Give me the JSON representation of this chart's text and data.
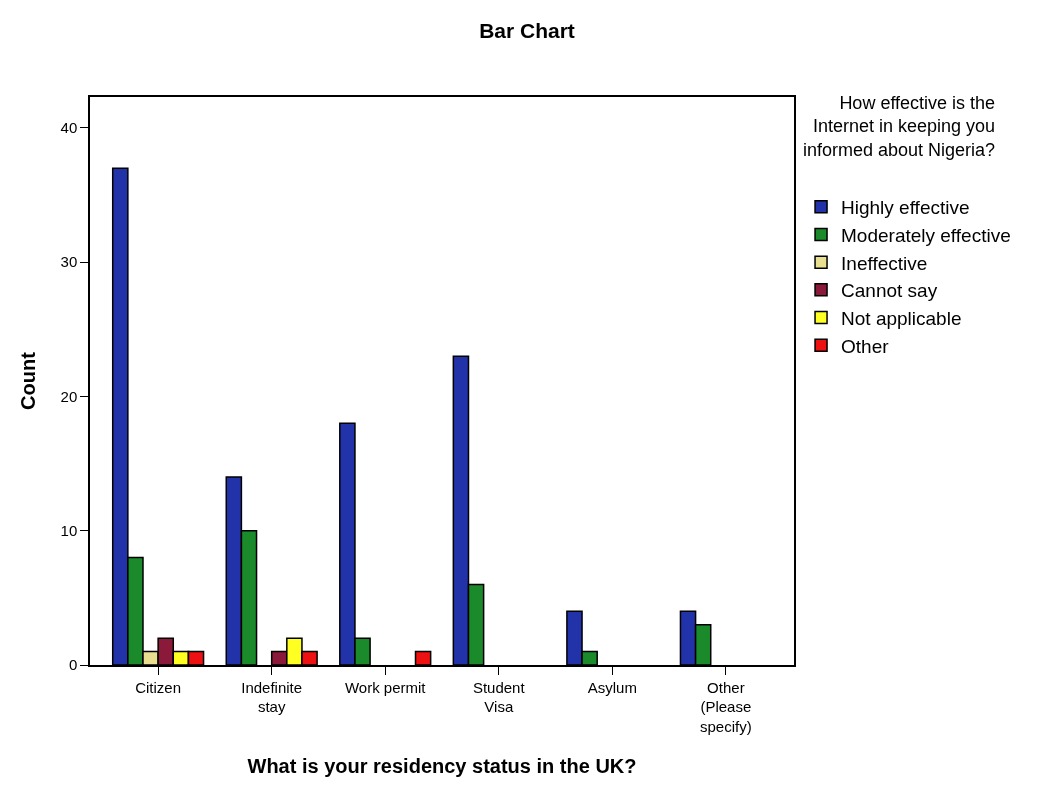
{
  "chart_data": {
    "type": "bar",
    "title": "Bar Chart",
    "xlabel": "What is your residency status in the UK?",
    "ylabel": "Count",
    "legend_title": "How effective is the Internet in keeping you informed about Nigeria?",
    "categories": [
      "Citizen",
      "Indefinite stay",
      "Work permit",
      "Student Visa",
      "Asylum",
      "Other (Please specify)"
    ],
    "series": [
      {
        "name": "Highly effective",
        "color": "#2233aa",
        "values": [
          37,
          14,
          18,
          23,
          4,
          4
        ]
      },
      {
        "name": "Moderately effective",
        "color": "#1a8a2a",
        "values": [
          8,
          10,
          2,
          6,
          1,
          3
        ]
      },
      {
        "name": "Ineffective",
        "color": "#e8e090",
        "values": [
          1,
          null,
          null,
          null,
          null,
          null
        ]
      },
      {
        "name": "Cannot say",
        "color": "#8b1a3a",
        "values": [
          2,
          1,
          null,
          null,
          null,
          null
        ]
      },
      {
        "name": "Not applicable",
        "color": "#ffff22",
        "values": [
          1,
          2,
          null,
          null,
          null,
          null
        ]
      },
      {
        "name": "Other",
        "color": "#ee1111",
        "values": [
          1,
          1,
          1,
          null,
          null,
          null
        ]
      }
    ],
    "ylim": [
      0,
      42.3
    ],
    "yticks": [
      0,
      10,
      20,
      30,
      40
    ],
    "grid": false,
    "legend": "top right"
  }
}
